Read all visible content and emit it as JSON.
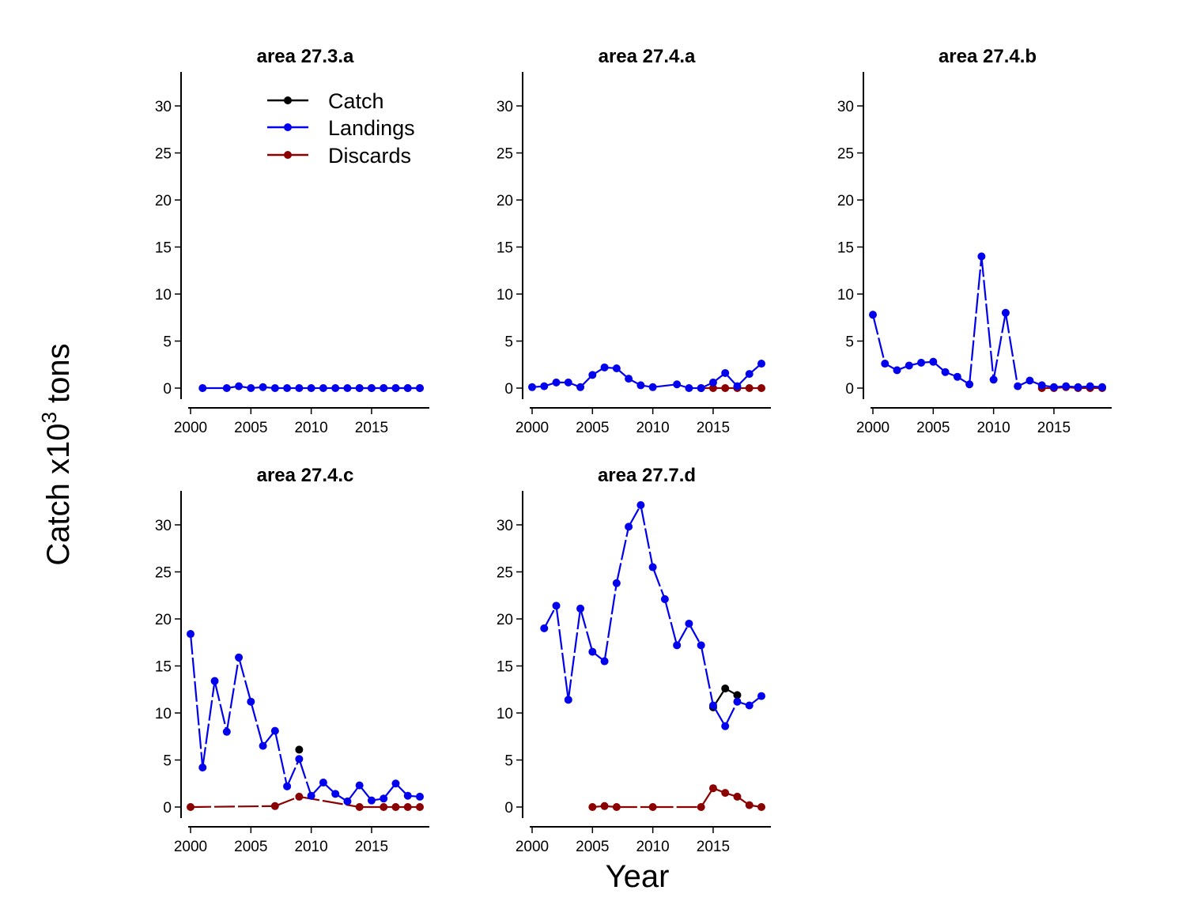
{
  "figure": {
    "xlabel": "Year",
    "ylabel_main": "Catch x10",
    "ylabel_sup": "3",
    "ylabel_suffix": " tons"
  },
  "legend": {
    "items": [
      {
        "label": "Catch",
        "color": "#000000"
      },
      {
        "label": "Landings",
        "color": "#0000ee"
      },
      {
        "label": "Discards",
        "color": "#8b0000"
      }
    ]
  },
  "chart_data": [
    {
      "type": "line",
      "title": "area  27.3.a",
      "xlim": [
        2000,
        2019
      ],
      "ylim": [
        -1,
        33
      ],
      "xticks": [
        2000,
        2005,
        2010,
        2015
      ],
      "yticks": [
        0,
        5,
        10,
        15,
        20,
        25,
        30
      ],
      "series": [
        {
          "name": "Catch",
          "color": "#000000",
          "x": [],
          "y": []
        },
        {
          "name": "Landings",
          "color": "#0000ee",
          "x": [
            2001,
            2003,
            2004,
            2005,
            2006,
            2007,
            2008,
            2009,
            2010,
            2011,
            2012,
            2013,
            2014,
            2015,
            2016,
            2017,
            2018,
            2019
          ],
          "y": [
            0.0,
            0.0,
            0.2,
            0.0,
            0.1,
            0.0,
            0.0,
            0.0,
            0.0,
            0.0,
            0.0,
            0.0,
            0.0,
            0.0,
            0.0,
            0.0,
            0.0,
            0.0
          ]
        },
        {
          "name": "Discards",
          "color": "#8b0000",
          "x": [
            2014,
            2015,
            2016,
            2017,
            2018,
            2019
          ],
          "y": [
            0.0,
            0.0,
            0.0,
            0.0,
            0.0,
            0.0
          ]
        }
      ]
    },
    {
      "type": "line",
      "title": "area  27.4.a",
      "xlim": [
        2000,
        2019
      ],
      "ylim": [
        -1,
        33
      ],
      "xticks": [
        2000,
        2005,
        2010,
        2015
      ],
      "yticks": [
        0,
        5,
        10,
        15,
        20,
        25,
        30
      ],
      "series": [
        {
          "name": "Catch",
          "color": "#000000",
          "x": [],
          "y": []
        },
        {
          "name": "Landings",
          "color": "#0000ee",
          "x": [
            2000,
            2001,
            2002,
            2003,
            2004,
            2005,
            2006,
            2007,
            2008,
            2009,
            2010,
            2012,
            2013,
            2014,
            2015,
            2016,
            2017,
            2018,
            2019
          ],
          "y": [
            0.1,
            0.2,
            0.6,
            0.6,
            0.1,
            1.4,
            2.2,
            2.1,
            1.0,
            0.3,
            0.1,
            0.4,
            0.0,
            0.0,
            0.6,
            1.6,
            0.2,
            1.5,
            2.6
          ]
        },
        {
          "name": "Discards",
          "color": "#8b0000",
          "x": [
            2014,
            2015,
            2016,
            2017,
            2018,
            2019
          ],
          "y": [
            0.0,
            0.0,
            0.0,
            0.0,
            0.0,
            0.0
          ]
        }
      ]
    },
    {
      "type": "line",
      "title": "area  27.4.b",
      "xlim": [
        2000,
        2019
      ],
      "ylim": [
        -1,
        33
      ],
      "xticks": [
        2000,
        2005,
        2010,
        2015
      ],
      "yticks": [
        0,
        5,
        10,
        15,
        20,
        25,
        30
      ],
      "series": [
        {
          "name": "Catch",
          "color": "#000000",
          "x": [],
          "y": []
        },
        {
          "name": "Landings",
          "color": "#0000ee",
          "x": [
            2000,
            2001,
            2002,
            2003,
            2004,
            2005,
            2006,
            2007,
            2008,
            2009,
            2010,
            2011,
            2012,
            2013,
            2014,
            2015,
            2016,
            2017,
            2018,
            2019
          ],
          "y": [
            7.8,
            2.6,
            1.9,
            2.4,
            2.7,
            2.8,
            1.7,
            1.2,
            0.4,
            14.0,
            0.9,
            8.0,
            0.2,
            0.8,
            0.3,
            0.1,
            0.2,
            0.1,
            0.2,
            0.1
          ]
        },
        {
          "name": "Discards",
          "color": "#8b0000",
          "x": [
            2014,
            2015,
            2016,
            2017,
            2018,
            2019
          ],
          "y": [
            0.0,
            0.0,
            0.1,
            0.0,
            0.0,
            0.0
          ]
        }
      ]
    },
    {
      "type": "line",
      "title": "area  27.4.c",
      "xlim": [
        2000,
        2019
      ],
      "ylim": [
        -1,
        33
      ],
      "xticks": [
        2000,
        2005,
        2010,
        2015
      ],
      "yticks": [
        0,
        5,
        10,
        15,
        20,
        25,
        30
      ],
      "series": [
        {
          "name": "Catch",
          "color": "#000000",
          "x": [
            2009
          ],
          "y": [
            6.1
          ]
        },
        {
          "name": "Landings",
          "color": "#0000ee",
          "x": [
            2000,
            2001,
            2002,
            2003,
            2004,
            2005,
            2006,
            2007,
            2008,
            2009,
            2010,
            2011,
            2012,
            2013,
            2014,
            2015,
            2016,
            2017,
            2018,
            2019
          ],
          "y": [
            18.4,
            4.2,
            13.4,
            8.0,
            15.9,
            11.2,
            6.5,
            8.1,
            2.2,
            5.1,
            1.2,
            2.6,
            1.4,
            0.6,
            2.3,
            0.7,
            0.9,
            2.5,
            1.2,
            1.1
          ]
        },
        {
          "name": "Discards",
          "color": "#8b0000",
          "x": [
            2000,
            2007,
            2009,
            2014,
            2016,
            2017,
            2018,
            2019
          ],
          "y": [
            0.0,
            0.1,
            1.1,
            0.0,
            0.0,
            0.0,
            0.0,
            0.0
          ]
        }
      ]
    },
    {
      "type": "line",
      "title": "area  27.7.d",
      "xlim": [
        2000,
        2019
      ],
      "ylim": [
        -1,
        33
      ],
      "xticks": [
        2000,
        2005,
        2010,
        2015
      ],
      "yticks": [
        0,
        5,
        10,
        15,
        20,
        25,
        30
      ],
      "series": [
        {
          "name": "Catch",
          "color": "#000000",
          "x": [
            2015,
            2016,
            2017
          ],
          "y": [
            10.6,
            12.6,
            11.9
          ]
        },
        {
          "name": "Landings",
          "color": "#0000ee",
          "x": [
            2001,
            2002,
            2003,
            2004,
            2005,
            2006,
            2007,
            2008,
            2009,
            2010,
            2011,
            2012,
            2013,
            2014,
            2015,
            2016,
            2017,
            2018,
            2019
          ],
          "y": [
            19.0,
            21.4,
            11.4,
            21.1,
            16.5,
            15.5,
            23.8,
            29.8,
            32.1,
            25.5,
            22.1,
            17.2,
            19.5,
            17.2,
            10.8,
            8.6,
            11.2,
            10.8,
            11.8
          ]
        },
        {
          "name": "Discards",
          "color": "#8b0000",
          "x": [
            2005,
            2006,
            2007,
            2010,
            2014,
            2015,
            2016,
            2017,
            2018,
            2019
          ],
          "y": [
            0.0,
            0.1,
            0.0,
            0.0,
            0.0,
            2.0,
            1.5,
            1.1,
            0.2,
            0.0
          ]
        }
      ]
    }
  ]
}
